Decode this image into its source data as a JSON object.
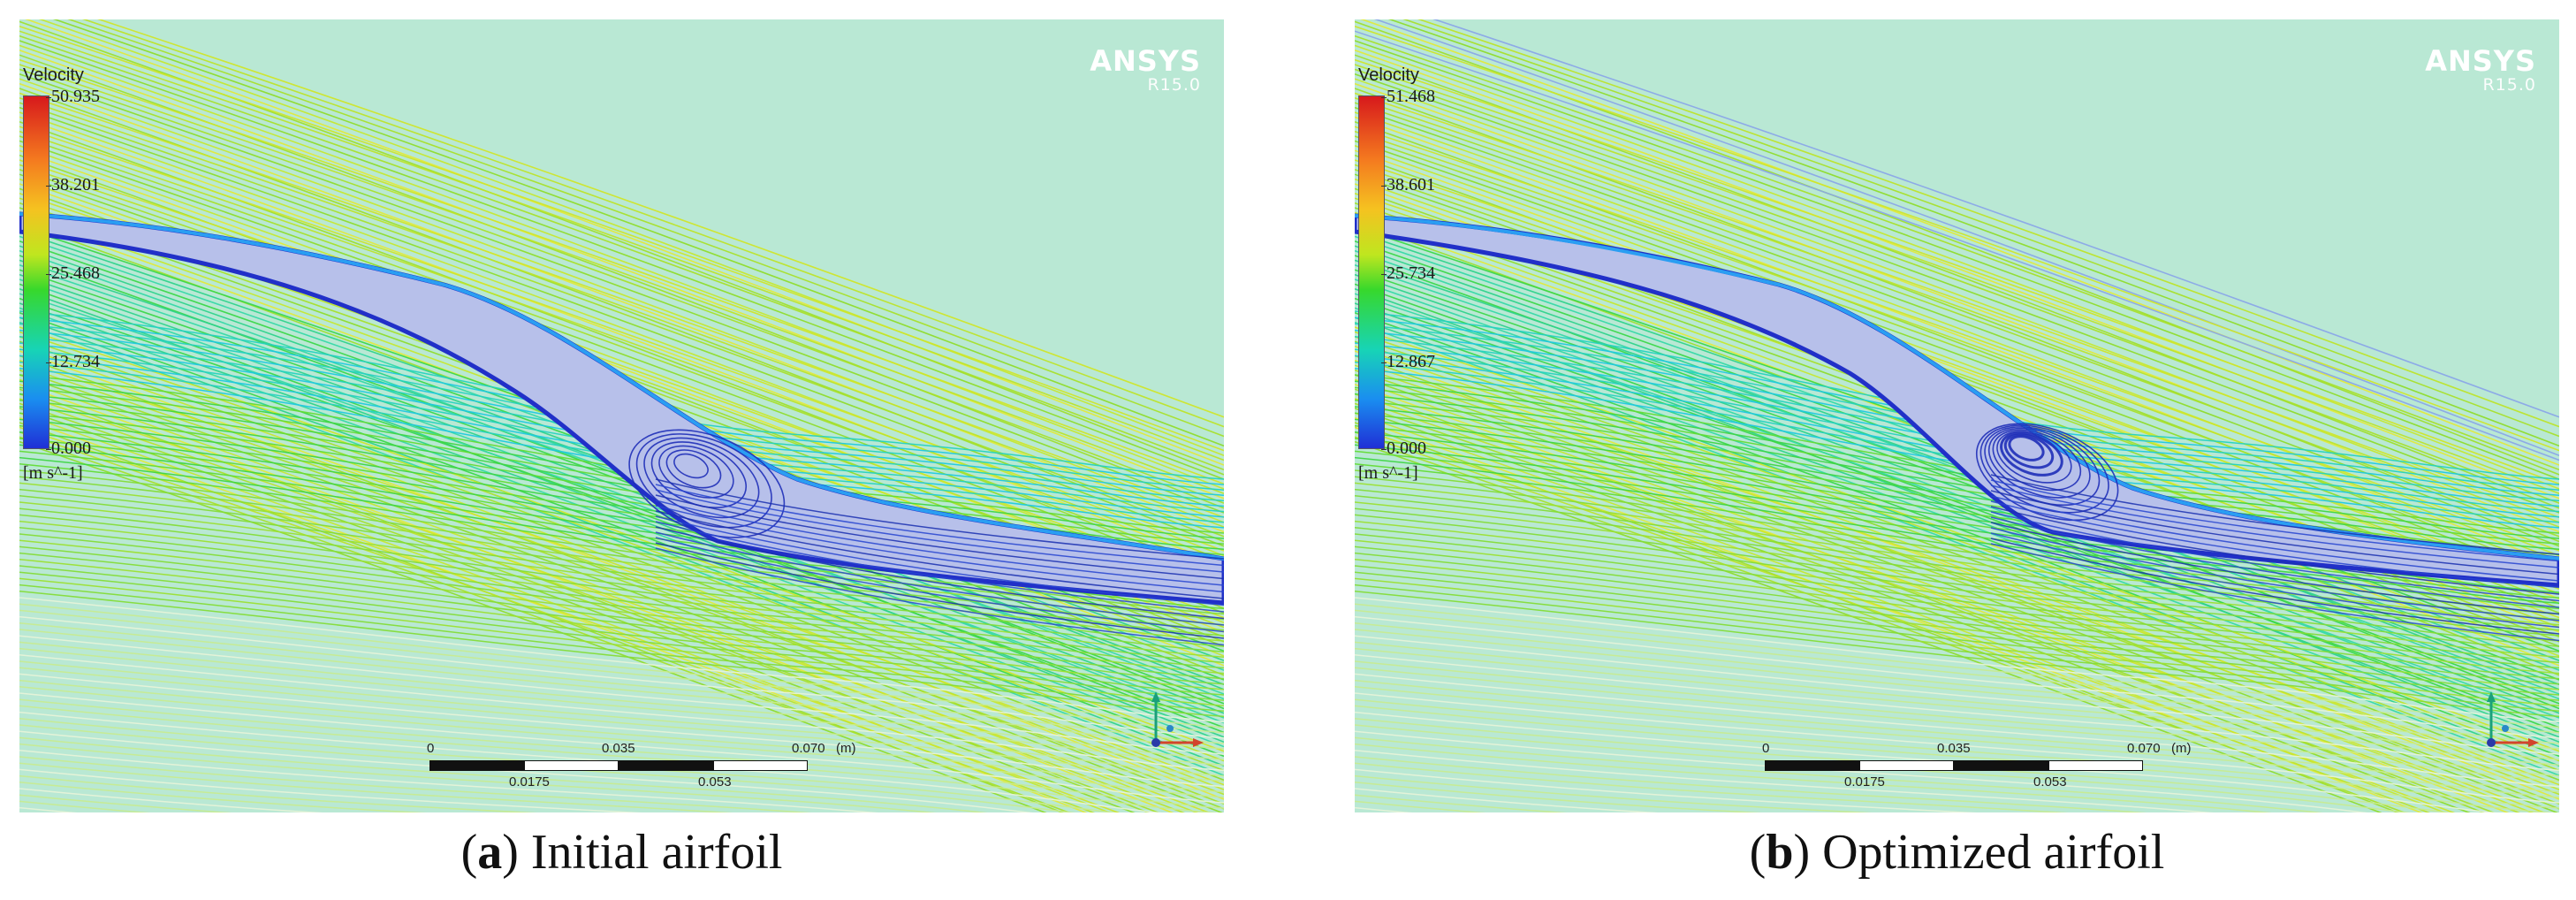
{
  "panels": [
    {
      "id": "a",
      "brand": "ANSYS",
      "version": "R15.0",
      "legend": {
        "title": "Velocity",
        "ticks": [
          "50.935",
          "38.201",
          "25.468",
          "12.734",
          "0.000"
        ],
        "unit": "[m s^-1]"
      },
      "scale_bar": {
        "labels_top": [
          "0",
          "0.035",
          "0.070"
        ],
        "unit": "(m)",
        "labels_bottom": [
          "0.0175",
          "0.053"
        ]
      },
      "caption": {
        "letter": "a",
        "text": ") Initial airfoil"
      }
    },
    {
      "id": "b",
      "brand": "ANSYS",
      "version": "R15.0",
      "legend": {
        "title": "Velocity",
        "ticks": [
          "51.468",
          "38.601",
          "25.734",
          "12.867",
          "0.000"
        ],
        "unit": "[m s^-1]"
      },
      "scale_bar": {
        "labels_top": [
          "0",
          "0.035",
          "0.070"
        ],
        "unit": "(m)",
        "labels_bottom": [
          "0.0175",
          "0.053"
        ]
      },
      "caption": {
        "letter": "b",
        "text": ") Optimized airfoil"
      }
    }
  ],
  "colors": {
    "colormap": [
      "#1f2fd6",
      "#1a8ef0",
      "#17d4b6",
      "#37d82c",
      "#bfe61f",
      "#f5c220",
      "#f47a1f",
      "#d7191c"
    ],
    "airfoil_fill": "#b7c0ea",
    "vortex_lines": "#1f2fb8"
  }
}
